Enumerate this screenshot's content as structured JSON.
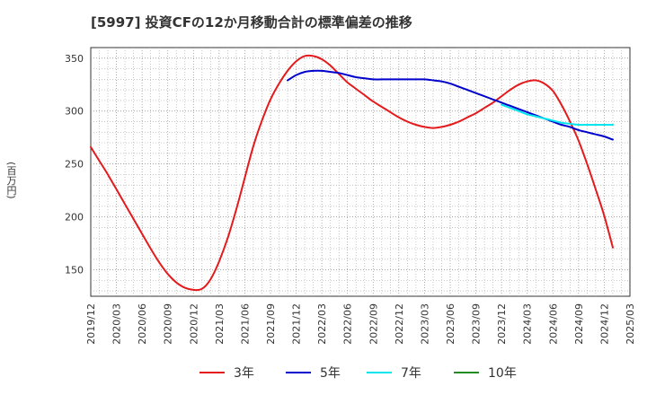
{
  "chart_data": {
    "type": "line",
    "title": "[5997]  投資CFの12か月移動合計の標準偏差の推移",
    "ylabel": "(百万円)",
    "xlabel": "",
    "y_ticks": [
      150,
      200,
      250,
      300,
      350
    ],
    "x_ticks": [
      "2019/12",
      "2020/03",
      "2020/06",
      "2020/09",
      "2020/12",
      "2021/03",
      "2021/06",
      "2021/09",
      "2021/12",
      "2022/03",
      "2022/06",
      "2022/09",
      "2022/12",
      "2023/03",
      "2023/06",
      "2023/09",
      "2023/12",
      "2024/03",
      "2024/06",
      "2024/09",
      "2024/12",
      "2025/03"
    ],
    "ylim": [
      125,
      360
    ],
    "grid": true,
    "legend_position": "bottom",
    "series": [
      {
        "name": "3年",
        "color": "#e41a1c",
        "points": [
          [
            "2019/12",
            266
          ],
          [
            "2020/01",
            253
          ],
          [
            "2020/02",
            240
          ],
          [
            "2020/03",
            226
          ],
          [
            "2020/04",
            212
          ],
          [
            "2020/05",
            198
          ],
          [
            "2020/06",
            184
          ],
          [
            "2020/07",
            170
          ],
          [
            "2020/08",
            157
          ],
          [
            "2020/09",
            146
          ],
          [
            "2020/10",
            138
          ],
          [
            "2020/11",
            133
          ],
          [
            "2020/12",
            131
          ],
          [
            "2021/01",
            132
          ],
          [
            "2021/02",
            141
          ],
          [
            "2021/03",
            158
          ],
          [
            "2021/04",
            180
          ],
          [
            "2021/05",
            207
          ],
          [
            "2021/06",
            237
          ],
          [
            "2021/07",
            267
          ],
          [
            "2021/08",
            291
          ],
          [
            "2021/09",
            311
          ],
          [
            "2021/10",
            326
          ],
          [
            "2021/11",
            338
          ],
          [
            "2021/12",
            347
          ],
          [
            "2022/01",
            352
          ],
          [
            "2022/02",
            352
          ],
          [
            "2022/03",
            349
          ],
          [
            "2022/04",
            343
          ],
          [
            "2022/05",
            335
          ],
          [
            "2022/06",
            327
          ],
          [
            "2022/07",
            321
          ],
          [
            "2022/08",
            315
          ],
          [
            "2022/09",
            309
          ],
          [
            "2022/10",
            304
          ],
          [
            "2022/11",
            299
          ],
          [
            "2022/12",
            294
          ],
          [
            "2023/01",
            290
          ],
          [
            "2023/02",
            287
          ],
          [
            "2023/03",
            285
          ],
          [
            "2023/04",
            284
          ],
          [
            "2023/05",
            285
          ],
          [
            "2023/06",
            287
          ],
          [
            "2023/07",
            290
          ],
          [
            "2023/08",
            294
          ],
          [
            "2023/09",
            298
          ],
          [
            "2023/10",
            303
          ],
          [
            "2023/11",
            308
          ],
          [
            "2023/12",
            314
          ],
          [
            "2024/01",
            320
          ],
          [
            "2024/02",
            325
          ],
          [
            "2024/03",
            328
          ],
          [
            "2024/04",
            329
          ],
          [
            "2024/05",
            326
          ],
          [
            "2024/06",
            319
          ],
          [
            "2024/07",
            306
          ],
          [
            "2024/08",
            290
          ],
          [
            "2024/09",
            272
          ],
          [
            "2024/10",
            250
          ],
          [
            "2024/11",
            226
          ],
          [
            "2024/12",
            201
          ],
          [
            "2025/01",
            171
          ]
        ]
      },
      {
        "name": "5年",
        "color": "#0000cc",
        "points": [
          [
            "2021/11",
            329
          ],
          [
            "2021/12",
            334
          ],
          [
            "2022/01",
            337
          ],
          [
            "2022/02",
            338
          ],
          [
            "2022/03",
            338
          ],
          [
            "2022/04",
            337
          ],
          [
            "2022/05",
            336
          ],
          [
            "2022/06",
            334
          ],
          [
            "2022/07",
            332
          ],
          [
            "2022/08",
            331
          ],
          [
            "2022/09",
            330
          ],
          [
            "2022/10",
            330
          ],
          [
            "2022/11",
            330
          ],
          [
            "2022/12",
            330
          ],
          [
            "2023/01",
            330
          ],
          [
            "2023/02",
            330
          ],
          [
            "2023/03",
            330
          ],
          [
            "2023/04",
            329
          ],
          [
            "2023/05",
            328
          ],
          [
            "2023/06",
            326
          ],
          [
            "2023/07",
            323
          ],
          [
            "2023/08",
            320
          ],
          [
            "2023/09",
            317
          ],
          [
            "2023/10",
            314
          ],
          [
            "2023/11",
            311
          ],
          [
            "2023/12",
            308
          ],
          [
            "2024/01",
            305
          ],
          [
            "2024/02",
            302
          ],
          [
            "2024/03",
            299
          ],
          [
            "2024/04",
            296
          ],
          [
            "2024/05",
            293
          ],
          [
            "2024/06",
            290
          ],
          [
            "2024/07",
            287
          ],
          [
            "2024/08",
            285
          ],
          [
            "2024/09",
            282
          ],
          [
            "2024/10",
            280
          ],
          [
            "2024/11",
            278
          ],
          [
            "2024/12",
            276
          ],
          [
            "2025/01",
            273
          ]
        ]
      },
      {
        "name": "7年",
        "color": "#00e5ee",
        "points": [
          [
            "2023/12",
            306
          ],
          [
            "2024/01",
            303
          ],
          [
            "2024/02",
            300
          ],
          [
            "2024/03",
            297
          ],
          [
            "2024/04",
            295
          ],
          [
            "2024/05",
            293
          ],
          [
            "2024/06",
            291
          ],
          [
            "2024/07",
            289
          ],
          [
            "2024/08",
            288
          ],
          [
            "2024/09",
            287
          ],
          [
            "2024/10",
            287
          ],
          [
            "2024/11",
            287
          ],
          [
            "2024/12",
            287
          ],
          [
            "2025/01",
            287
          ]
        ]
      },
      {
        "name": "10年",
        "color": "#228b22",
        "points": []
      }
    ]
  }
}
